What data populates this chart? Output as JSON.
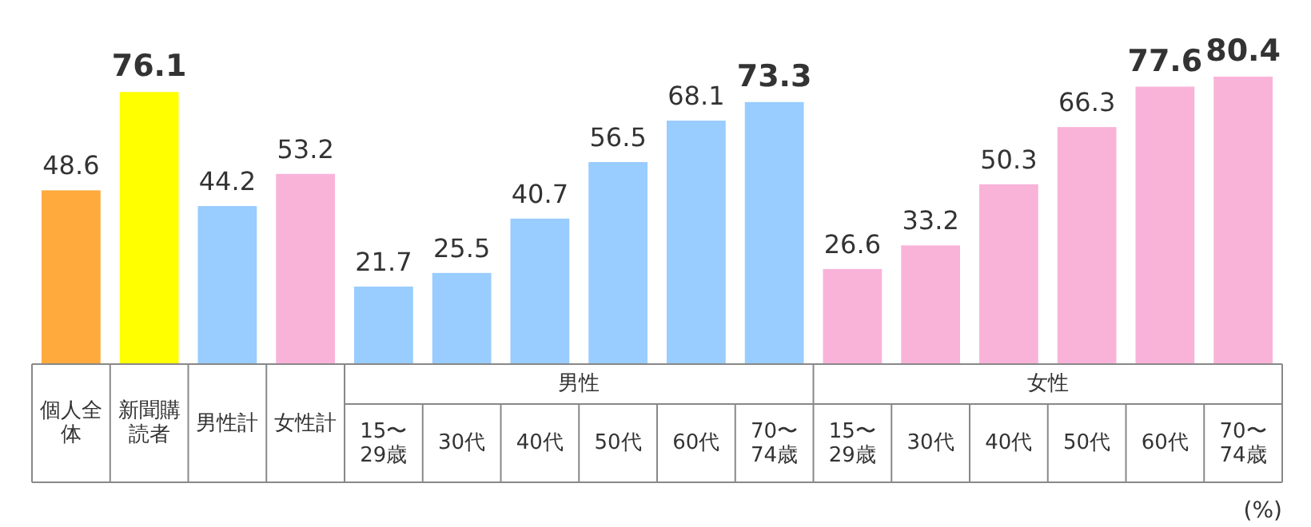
{
  "chart_data": {
    "type": "bar",
    "categories": [
      "個人全体",
      "新聞購読者",
      "男性計",
      "女性計",
      "15〜29歳",
      "30代",
      "40代",
      "50代",
      "60代",
      "70〜74歳",
      "15〜29歳",
      "30代",
      "40代",
      "50代",
      "60代",
      "70〜74歳"
    ],
    "values": [
      48.6,
      76.1,
      44.2,
      53.2,
      21.7,
      25.5,
      40.7,
      56.5,
      68.1,
      73.3,
      26.6,
      33.2,
      50.3,
      66.3,
      77.6,
      80.4
    ],
    "colors": [
      "#ffaa3c",
      "#ffff00",
      "#99ccff",
      "#f9b3d9",
      "#99ccff",
      "#99ccff",
      "#99ccff",
      "#99ccff",
      "#99ccff",
      "#99ccff",
      "#f9b3d9",
      "#f9b3d9",
      "#f9b3d9",
      "#f9b3d9",
      "#f9b3d9",
      "#f9b3d9"
    ],
    "value_labels": [
      "48.6",
      "**76.1**",
      "44.2",
      "53.2",
      "21.7",
      "25.5",
      "40.7",
      "56.5",
      "68.1",
      "**73.3**",
      "26.6",
      "33.2",
      "50.3",
      "66.3",
      "**77.6**",
      "**80.4**"
    ],
    "annotations": [
      "男性",
      "女性",
      "(%)"
    ]
  }
}
